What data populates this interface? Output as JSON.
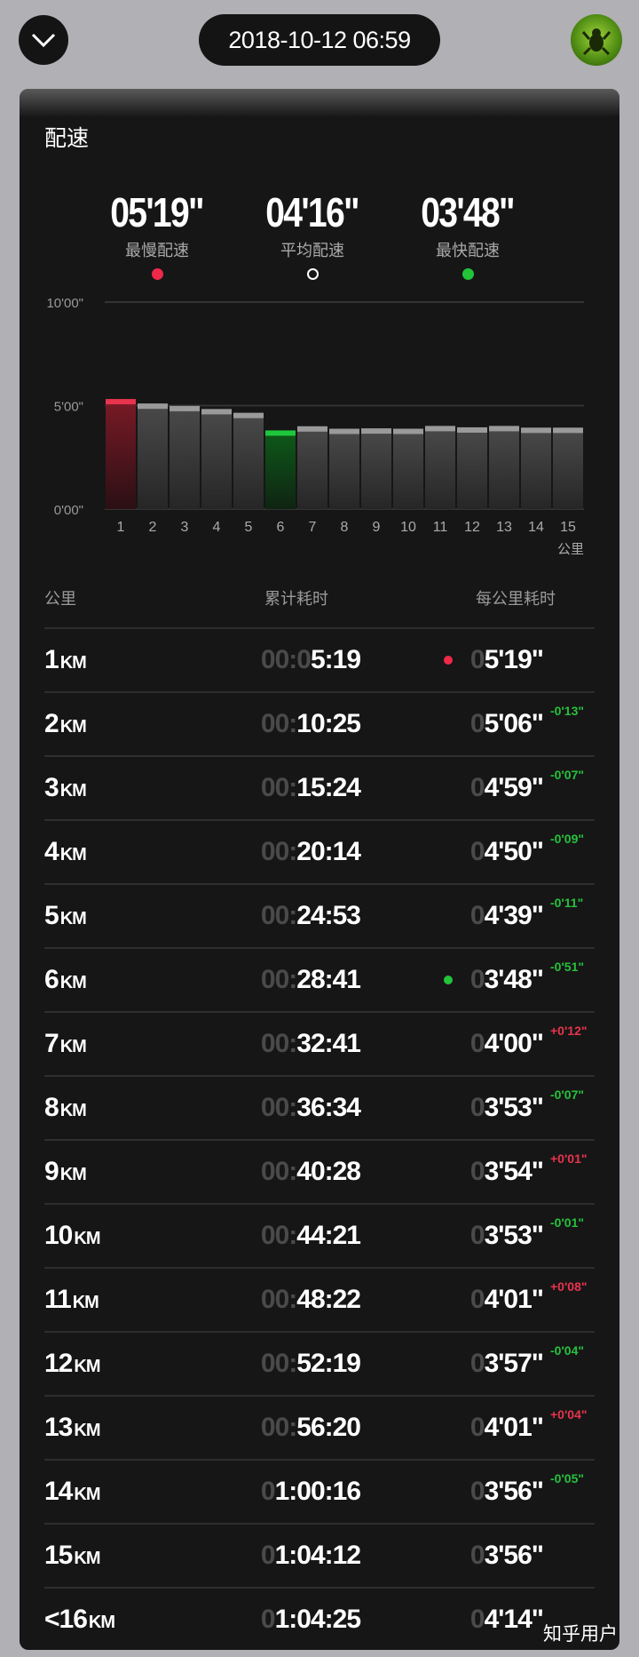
{
  "header": {
    "date": "2018-10-12 06:59",
    "back_icon": "chevron-down-icon",
    "avatar_icon": "frog-avatar"
  },
  "card": {
    "title": "配速"
  },
  "stats": [
    {
      "value": "05'19\"",
      "label": "最慢配速",
      "color": "#f0284a",
      "dot": "filled"
    },
    {
      "value": "04'16\"",
      "label": "平均配速",
      "color": "#ffffff",
      "dot": "hollow"
    },
    {
      "value": "03'48\"",
      "label": "最快配速",
      "color": "#22c43a",
      "dot": "filled"
    }
  ],
  "chart_data": {
    "type": "bar",
    "categories": [
      "1",
      "2",
      "3",
      "4",
      "5",
      "6",
      "7",
      "8",
      "9",
      "10",
      "11",
      "12",
      "13",
      "14",
      "15"
    ],
    "values_seconds": [
      319,
      306,
      299,
      290,
      279,
      228,
      240,
      233,
      234,
      233,
      241,
      237,
      241,
      236,
      236
    ],
    "y_ticks": [
      "0'00\"",
      "5'00\"",
      "10'00\""
    ],
    "ylim_seconds": [
      0,
      600
    ],
    "xlabel": "公里",
    "slowest_index": 0,
    "fastest_index": 5,
    "colors": {
      "slowest": "#e8344d",
      "fastest": "#1ec83c",
      "normal": "#4a4a4a",
      "cap": "#9a9a9a"
    }
  },
  "table": {
    "headers": [
      "公里",
      "累计耗时",
      "每公里耗时"
    ],
    "unit": "KM",
    "rows": [
      {
        "km": "1",
        "cum_dim": "00:0",
        "cum": "5:19",
        "pace_dim": "0",
        "pace": "5'19\"",
        "delta": "",
        "marker": "slowest"
      },
      {
        "km": "2",
        "cum_dim": "00:",
        "cum": "10:25",
        "pace_dim": "0",
        "pace": "5'06\"",
        "delta": "-0'13\""
      },
      {
        "km": "3",
        "cum_dim": "00:",
        "cum": "15:24",
        "pace_dim": "0",
        "pace": "4'59\"",
        "delta": "-0'07\""
      },
      {
        "km": "4",
        "cum_dim": "00:",
        "cum": "20:14",
        "pace_dim": "0",
        "pace": "4'50\"",
        "delta": "-0'09\""
      },
      {
        "km": "5",
        "cum_dim": "00:",
        "cum": "24:53",
        "pace_dim": "0",
        "pace": "4'39\"",
        "delta": "-0'11\""
      },
      {
        "km": "6",
        "cum_dim": "00:",
        "cum": "28:41",
        "pace_dim": "0",
        "pace": "3'48\"",
        "delta": "-0'51\"",
        "marker": "fastest"
      },
      {
        "km": "7",
        "cum_dim": "00:",
        "cum": "32:41",
        "pace_dim": "0",
        "pace": "4'00\"",
        "delta": "+0'12\""
      },
      {
        "km": "8",
        "cum_dim": "00:",
        "cum": "36:34",
        "pace_dim": "0",
        "pace": "3'53\"",
        "delta": "-0'07\""
      },
      {
        "km": "9",
        "cum_dim": "00:",
        "cum": "40:28",
        "pace_dim": "0",
        "pace": "3'54\"",
        "delta": "+0'01\""
      },
      {
        "km": "10",
        "cum_dim": "00:",
        "cum": "44:21",
        "pace_dim": "0",
        "pace": "3'53\"",
        "delta": "-0'01\""
      },
      {
        "km": "11",
        "cum_dim": "00:",
        "cum": "48:22",
        "pace_dim": "0",
        "pace": "4'01\"",
        "delta": "+0'08\""
      },
      {
        "km": "12",
        "cum_dim": "00:",
        "cum": "52:19",
        "pace_dim": "0",
        "pace": "3'57\"",
        "delta": "-0'04\""
      },
      {
        "km": "13",
        "cum_dim": "00:",
        "cum": "56:20",
        "pace_dim": "0",
        "pace": "4'01\"",
        "delta": "+0'04\""
      },
      {
        "km": "14",
        "cum_dim": "0",
        "cum": "1:00:16",
        "pace_dim": "0",
        "pace": "3'56\"",
        "delta": "-0'05\""
      },
      {
        "km": "15",
        "cum_dim": "0",
        "cum": "1:04:12",
        "pace_dim": "0",
        "pace": "3'56\"",
        "delta": ""
      },
      {
        "km": "<16",
        "cum_dim": "0",
        "cum": "1:04:25",
        "pace_dim": "0",
        "pace": "4'14\"",
        "delta": ""
      }
    ]
  },
  "colors": {
    "faster": "#27c13d",
    "slower": "#e8344d"
  },
  "watermark": "知乎用户"
}
